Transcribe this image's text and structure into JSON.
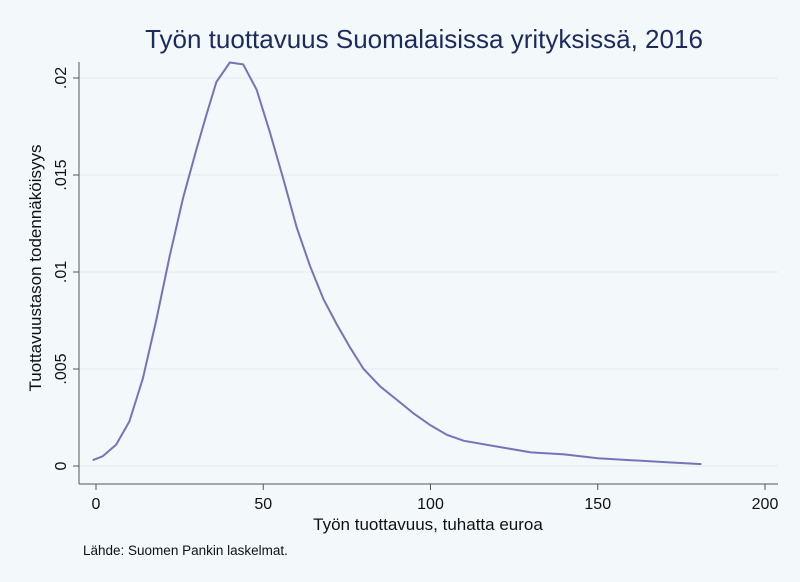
{
  "chart_data": {
    "type": "line",
    "title": "Työn tuottavuus Suomalaisissa yrityksissä, 2016",
    "xlabel": "Työn tuottavuus, tuhatta euroa",
    "ylabel": "Tuottavuustason todennäköisyys",
    "xlim": [
      -5,
      205
    ],
    "ylim": [
      0,
      0.021
    ],
    "xticks": [
      0,
      50,
      100,
      150,
      200
    ],
    "xtick_labels": [
      "0",
      "50",
      "100",
      "150",
      "200"
    ],
    "yticks": [
      0,
      0.005,
      0.01,
      0.015,
      0.02
    ],
    "ytick_labels": [
      "0",
      ".005",
      ".01",
      ".015",
      ".02"
    ],
    "grid": true,
    "legend": "none",
    "source_note": "Lähde: Suomen Pankin laskelmat.",
    "colors": {
      "line": "#7474ba",
      "title": "#1c2b5e",
      "background": "#f3f8fa",
      "grid": "#e3ecf0"
    },
    "series": [
      {
        "x": [
          -1,
          2,
          6,
          10,
          14,
          18,
          22,
          26,
          30,
          33,
          36,
          40,
          44,
          48,
          52,
          56,
          60,
          64,
          68,
          72,
          76,
          80,
          85,
          90,
          95,
          100,
          105,
          110,
          120,
          130,
          140,
          150,
          160,
          170,
          181
        ],
        "y": [
          0.0003,
          0.0005,
          0.0011,
          0.0023,
          0.0045,
          0.0075,
          0.0108,
          0.0138,
          0.0163,
          0.0181,
          0.0198,
          0.0208,
          0.0207,
          0.0194,
          0.0172,
          0.0148,
          0.0123,
          0.0103,
          0.0086,
          0.0073,
          0.0061,
          0.005,
          0.0041,
          0.0034,
          0.0027,
          0.0021,
          0.0016,
          0.0013,
          0.001,
          0.0007,
          0.0006,
          0.0004,
          0.0003,
          0.0002,
          0.0001
        ]
      }
    ]
  }
}
